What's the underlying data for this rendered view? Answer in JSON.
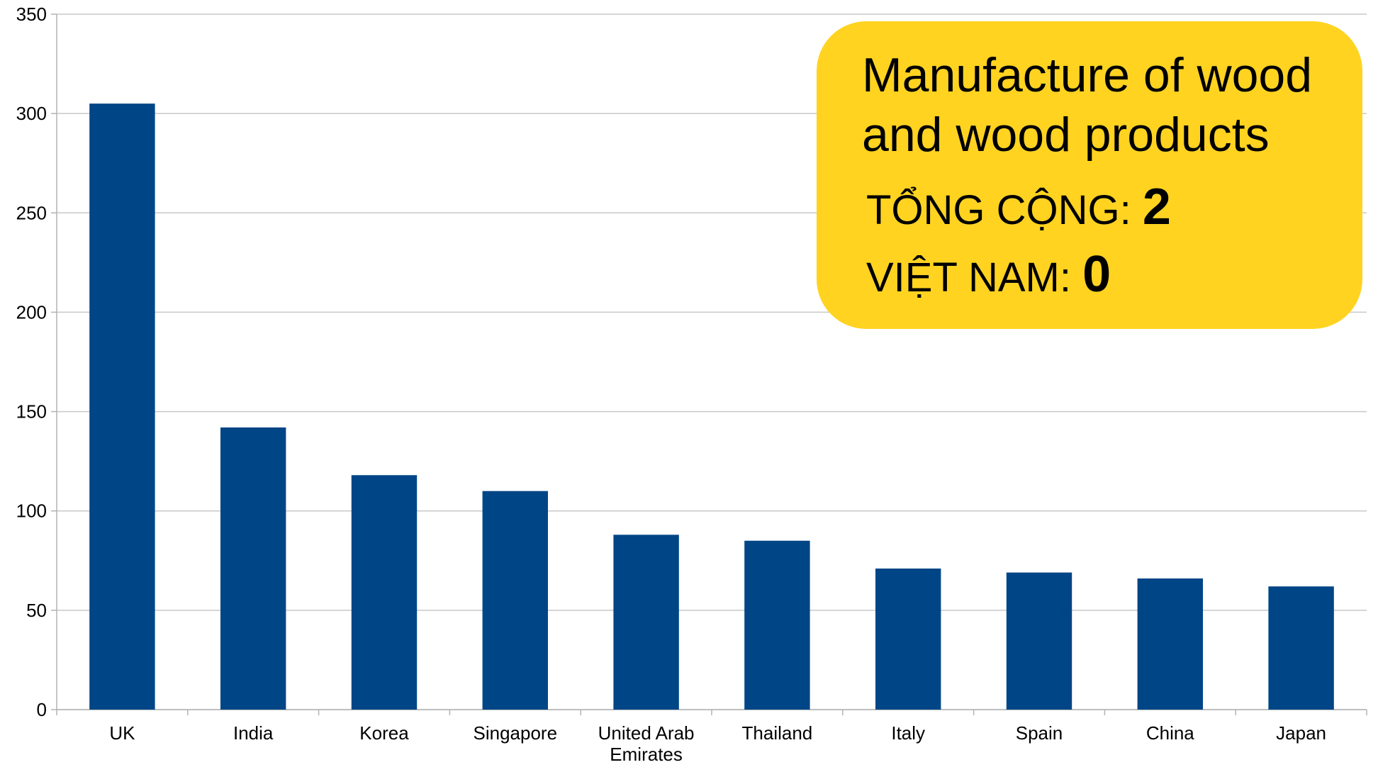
{
  "chart_data": {
    "type": "bar",
    "categories": [
      "UK",
      "India",
      "Korea",
      "Singapore",
      "United Arab Emirates",
      "Thailand",
      "Italy",
      "Spain",
      "China",
      "Japan"
    ],
    "category_lines": [
      [
        "UK"
      ],
      [
        "India"
      ],
      [
        "Korea"
      ],
      [
        "Singapore"
      ],
      [
        "United Arab",
        "Emirates"
      ],
      [
        "Thailand"
      ],
      [
        "Italy"
      ],
      [
        "Spain"
      ],
      [
        "China"
      ],
      [
        "Japan"
      ]
    ],
    "values": [
      305,
      142,
      118,
      110,
      88,
      85,
      71,
      69,
      66,
      62
    ],
    "ylim": [
      0,
      350
    ],
    "yticks": [
      0,
      50,
      100,
      150,
      200,
      250,
      300,
      350
    ],
    "grid": true,
    "bar_color": "#004586"
  },
  "callout": {
    "title_line1": "Manufacture of wood",
    "title_line2": "and wood products",
    "total_label": "TỔNG CỘNG: ",
    "total_value": "2",
    "vietnam_label": "VIỆT NAM: ",
    "vietnam_value": "0",
    "background": "#FFD320"
  }
}
